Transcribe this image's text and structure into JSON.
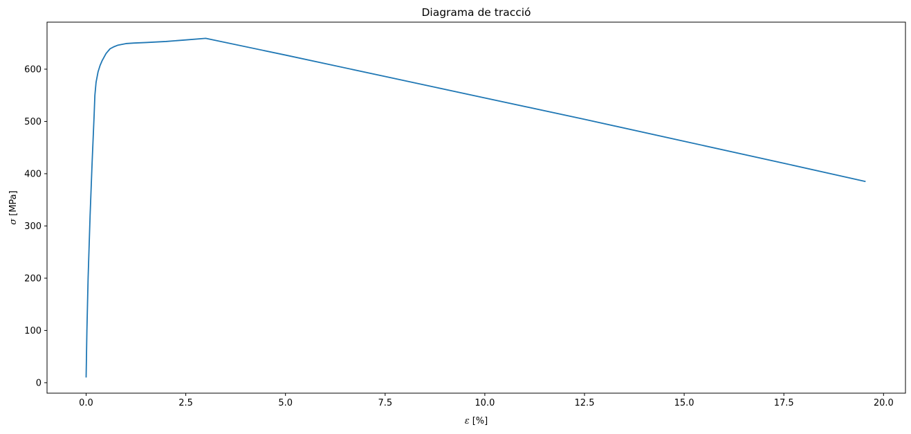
{
  "chart_data": {
    "type": "line",
    "title": "Diagrama de tracció",
    "xlabel_symbol": "ε",
    "xlabel_unit": "[%]",
    "ylabel_symbol": "σ",
    "ylabel_unit": "[MPa]",
    "xlim": [
      -0.98,
      20.55
    ],
    "ylim": [
      -20,
      690
    ],
    "xticks": [
      0,
      2.5,
      5,
      7.5,
      10,
      12.5,
      15,
      17.5,
      20
    ],
    "xtick_labels": [
      "0.0",
      "2.5",
      "5.0",
      "7.5",
      "10.0",
      "12.5",
      "15.0",
      "17.5",
      "20.0"
    ],
    "yticks": [
      0,
      100,
      200,
      300,
      400,
      500,
      600
    ],
    "ytick_labels": [
      "0",
      "100",
      "200",
      "300",
      "400",
      "500",
      "600"
    ],
    "grid": false,
    "line_color": "#1f77b4",
    "series": [
      {
        "x": [
          0.0,
          0.02,
          0.05,
          0.1,
          0.15,
          0.2,
          0.22,
          0.25,
          0.3,
          0.35,
          0.4,
          0.5,
          0.6,
          0.7,
          0.8,
          1.0,
          1.2,
          1.5,
          2.0,
          2.5,
          3.0,
          5.0,
          7.5,
          10.0,
          12.5,
          15.0,
          17.5,
          19.55
        ],
        "y": [
          10,
          100,
          200,
          320,
          420,
          510,
          550,
          575,
          595,
          607,
          616,
          630,
          639,
          643,
          646,
          649,
          650,
          651,
          653,
          656,
          659,
          627,
          586,
          545,
          504,
          462,
          420,
          385
        ]
      }
    ]
  }
}
